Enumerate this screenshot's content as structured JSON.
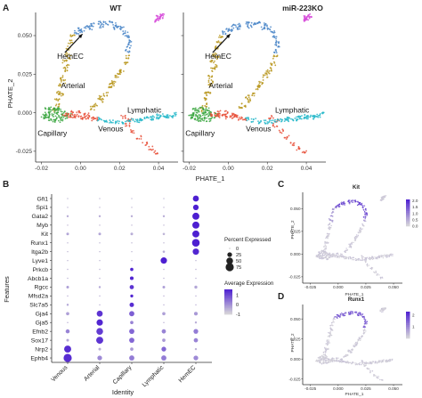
{
  "figure": {
    "panel_letters": [
      "A",
      "B",
      "C",
      "D"
    ]
  },
  "colors": {
    "HemEC": "#4a86c8",
    "Arterial": "#b8961e",
    "Capillary": "#3aa640",
    "Venous": "#e8503a",
    "Lymphatic": "#23b7c9",
    "other": "#d64ad9",
    "expr_low": "#d9d9d9",
    "expr_high": "#4d1fd1"
  },
  "chart_data": [
    {
      "panel": "A",
      "type": "scatter",
      "facets": [
        "WT",
        "miR-223KO"
      ],
      "xlabel": "PHATE_1",
      "ylabel": "PHATE_2",
      "x_ticks": [
        -0.02,
        0.0,
        0.02,
        0.04
      ],
      "x_tick_labels": [
        "-0.02",
        "0.00",
        "0.02",
        "0.04"
      ],
      "xlim": [
        -0.023,
        0.05
      ],
      "y_ticks": [
        -0.025,
        0.0,
        0.025,
        0.05
      ],
      "y_tick_labels": [
        "-0.025",
        "0.000",
        "0.025",
        "0.050"
      ],
      "ylim": [
        -0.032,
        0.065
      ],
      "cluster_labels": [
        {
          "text": "HemEC",
          "x": -0.012,
          "y": 0.035
        },
        {
          "text": "Arterial",
          "x": -0.01,
          "y": 0.016
        },
        {
          "text": "Lymphatic",
          "x": 0.024,
          "y": 0.0
        },
        {
          "text": "Venous",
          "x": 0.009,
          "y": -0.012
        },
        {
          "text": "Capillary",
          "x": -0.022,
          "y": -0.015
        }
      ],
      "arrow": {
        "from": [
          -0.008,
          0.039
        ],
        "to": [
          0.001,
          0.051
        ]
      },
      "clusters": [
        {
          "name": "HemEC",
          "points": [
            [
              -0.002,
              0.052
            ],
            [
              0.0,
              0.054
            ],
            [
              0.003,
              0.056
            ],
            [
              0.006,
              0.057
            ],
            [
              0.01,
              0.058
            ],
            [
              0.013,
              0.058
            ],
            [
              0.016,
              0.058
            ],
            [
              0.019,
              0.057
            ],
            [
              0.021,
              0.055
            ],
            [
              0.023,
              0.052
            ],
            [
              0.024,
              0.049
            ],
            [
              0.025,
              0.046
            ],
            [
              0.025,
              0.043
            ],
            [
              0.024,
              0.04
            ],
            [
              0.001,
              0.053
            ],
            [
              0.005,
              0.055
            ],
            [
              0.011,
              0.056
            ],
            [
              0.018,
              0.055
            ]
          ]
        },
        {
          "name": "Arterial",
          "points": [
            [
              -0.004,
              0.05
            ],
            [
              -0.005,
              0.046
            ],
            [
              -0.006,
              0.042
            ],
            [
              -0.007,
              0.038
            ],
            [
              -0.008,
              0.033
            ],
            [
              -0.008,
              0.028
            ],
            [
              -0.009,
              0.023
            ],
            [
              -0.01,
              0.018
            ],
            [
              -0.011,
              0.013
            ],
            [
              -0.012,
              0.009
            ],
            [
              -0.012,
              0.005
            ],
            [
              -0.013,
              0.002
            ],
            [
              -0.006,
              0.036
            ],
            [
              -0.009,
              0.02
            ],
            [
              -0.01,
              0.012
            ],
            [
              -0.007,
              0.03
            ],
            [
              0.024,
              0.036
            ],
            [
              0.023,
              0.032
            ],
            [
              0.021,
              0.028
            ],
            [
              0.019,
              0.024
            ],
            [
              0.017,
              0.02
            ],
            [
              0.015,
              0.016
            ],
            [
              0.013,
              0.012
            ],
            [
              0.011,
              0.008
            ],
            [
              0.008,
              0.005
            ],
            [
              0.006,
              0.003
            ],
            [
              0.01,
              0.01
            ],
            [
              0.016,
              0.018
            ],
            [
              0.02,
              0.026
            ]
          ]
        },
        {
          "name": "Capillary",
          "points": [
            [
              -0.014,
              0.003
            ],
            [
              -0.016,
              0.001
            ],
            [
              -0.017,
              -0.001
            ],
            [
              -0.018,
              -0.003
            ],
            [
              -0.016,
              -0.004
            ],
            [
              -0.014,
              -0.005
            ],
            [
              -0.012,
              -0.004
            ],
            [
              -0.01,
              -0.002
            ],
            [
              -0.009,
              0.0
            ],
            [
              -0.011,
              0.002
            ],
            [
              -0.013,
              -0.001
            ],
            [
              -0.015,
              -0.002
            ],
            [
              -0.008,
              -0.003
            ],
            [
              -0.017,
              0.002
            ],
            [
              -0.012,
              0.001
            ],
            [
              -0.01,
              -0.005
            ],
            [
              -0.006,
              -0.001
            ],
            [
              -0.019,
              -0.002
            ]
          ]
        },
        {
          "name": "Venous",
          "points": [
            [
              -0.008,
              -0.001
            ],
            [
              -0.006,
              -0.002
            ],
            [
              -0.004,
              -0.002
            ],
            [
              -0.002,
              -0.002
            ],
            [
              0.0,
              -0.003
            ],
            [
              0.002,
              -0.003
            ],
            [
              0.004,
              -0.003
            ],
            [
              0.006,
              -0.004
            ],
            [
              0.008,
              -0.004
            ],
            [
              -0.005,
              0.0
            ],
            [
              -0.001,
              0.0
            ],
            [
              0.003,
              -0.001
            ],
            [
              0.024,
              -0.008
            ],
            [
              0.027,
              -0.012
            ],
            [
              0.03,
              -0.016
            ],
            [
              0.033,
              -0.02
            ],
            [
              0.036,
              -0.023
            ],
            [
              0.039,
              -0.026
            ],
            [
              0.025,
              -0.005
            ],
            [
              0.022,
              -0.003
            ]
          ]
        },
        {
          "name": "Lymphatic",
          "points": [
            [
              0.01,
              -0.004
            ],
            [
              0.013,
              -0.005
            ],
            [
              0.016,
              -0.006
            ],
            [
              0.019,
              -0.006
            ],
            [
              0.022,
              -0.006
            ],
            [
              0.025,
              -0.005
            ],
            [
              0.028,
              -0.005
            ],
            [
              0.031,
              -0.004
            ],
            [
              0.034,
              -0.004
            ],
            [
              0.037,
              -0.003
            ],
            [
              0.04,
              -0.003
            ],
            [
              0.043,
              -0.002
            ],
            [
              0.046,
              -0.002
            ],
            [
              0.048,
              -0.001
            ],
            [
              0.044,
              -0.003
            ],
            [
              0.04,
              -0.002
            ],
            [
              0.036,
              -0.004
            ],
            [
              0.03,
              -0.005
            ]
          ]
        },
        {
          "name": "other",
          "points": [
            [
              0.039,
              0.06
            ],
            [
              0.04,
              0.061
            ],
            [
              0.041,
              0.062
            ],
            [
              0.042,
              0.063
            ],
            [
              0.04,
              0.062
            ]
          ]
        }
      ]
    },
    {
      "panel": "B",
      "type": "dotplot",
      "xlabel": "Identity",
      "ylabel": "Features",
      "categories": [
        "Venous",
        "Arterial",
        "Capillary",
        "Lymphatic",
        "HemEC"
      ],
      "features": [
        "Gfi1",
        "Spi1",
        "Gata2",
        "Myb",
        "Kit",
        "Runx1",
        "Itga2b",
        "Lyve1",
        "Prkcb",
        "Abcb1a",
        "Rgcc",
        "Mfsd2a",
        "Slc7a5",
        "Gja4",
        "Gja5",
        "Efnb2",
        "Sox17",
        "Nrp2",
        "Ephb4"
      ],
      "percent_expressed": [
        [
          2,
          2,
          2,
          2,
          40
        ],
        [
          2,
          2,
          2,
          2,
          35
        ],
        [
          5,
          5,
          5,
          5,
          55
        ],
        [
          2,
          2,
          2,
          2,
          55
        ],
        [
          8,
          8,
          8,
          6,
          55
        ],
        [
          2,
          2,
          2,
          2,
          65
        ],
        [
          2,
          2,
          2,
          6,
          45
        ],
        [
          2,
          2,
          2,
          45,
          2
        ],
        [
          2,
          2,
          12,
          2,
          2
        ],
        [
          2,
          2,
          15,
          2,
          2
        ],
        [
          8,
          5,
          20,
          8,
          10
        ],
        [
          2,
          2,
          10,
          2,
          2
        ],
        [
          5,
          2,
          22,
          2,
          2
        ],
        [
          12,
          40,
          30,
          12,
          15
        ],
        [
          2,
          45,
          12,
          2,
          5
        ],
        [
          18,
          50,
          30,
          20,
          25
        ],
        [
          8,
          55,
          30,
          12,
          20
        ],
        [
          55,
          8,
          12,
          25,
          5
        ],
        [
          75,
          25,
          30,
          30,
          25
        ]
      ],
      "average_expression": [
        [
          -0.6,
          -0.6,
          -0.6,
          -0.6,
          1.6
        ],
        [
          -0.6,
          -0.6,
          -0.6,
          -0.6,
          1.6
        ],
        [
          -0.4,
          -0.4,
          -0.4,
          -0.4,
          1.6
        ],
        [
          -0.6,
          -0.6,
          -0.6,
          -0.6,
          1.6
        ],
        [
          -0.3,
          -0.3,
          -0.4,
          -0.5,
          1.6
        ],
        [
          -0.6,
          -0.6,
          -0.6,
          -0.6,
          1.6
        ],
        [
          -0.6,
          -0.6,
          -0.6,
          -0.4,
          1.5
        ],
        [
          -0.6,
          -0.6,
          -0.6,
          1.6,
          -0.6
        ],
        [
          -0.5,
          -0.5,
          1.5,
          -0.5,
          -0.5
        ],
        [
          -0.5,
          -0.5,
          1.5,
          -0.5,
          -0.5
        ],
        [
          -0.2,
          -0.3,
          1.3,
          -0.2,
          -0.3
        ],
        [
          -0.5,
          -0.5,
          1.5,
          -0.5,
          -0.5
        ],
        [
          -0.3,
          -0.5,
          1.4,
          -0.5,
          -0.5
        ],
        [
          -0.2,
          1.3,
          0.7,
          -0.2,
          -0.1
        ],
        [
          -0.5,
          1.5,
          0.2,
          -0.5,
          -0.4
        ],
        [
          0.2,
          1.2,
          0.6,
          0.2,
          0.3
        ],
        [
          -0.3,
          1.3,
          0.6,
          -0.1,
          0.2
        ],
        [
          1.4,
          -0.4,
          -0.1,
          0.6,
          -0.5
        ],
        [
          1.4,
          0.1,
          0.3,
          0.3,
          0.1
        ]
      ],
      "legend": {
        "size_title": "Percent Expressed",
        "size_values": [
          0,
          25,
          50,
          75
        ],
        "size_labels": [
          "0",
          "25",
          "50",
          "75"
        ],
        "color_title": "Average Expression",
        "color_range": [
          -1,
          1.6
        ],
        "color_labels": [
          "1",
          "0",
          "-1"
        ],
        "color_label_values": [
          1,
          0,
          -1
        ]
      }
    },
    {
      "panel": "C",
      "type": "scatter",
      "title": "Kit",
      "xlabel": "PHATE_1",
      "ylabel": "PHATE_2",
      "x_ticks": [
        -0.025,
        0.0,
        0.025,
        0.05
      ],
      "x_tick_labels": [
        "-0.025",
        "0.000",
        "0.025",
        "0.050"
      ],
      "xlim": [
        -0.032,
        0.058
      ],
      "y_ticks": [
        -0.025,
        0.0,
        0.025,
        0.05
      ],
      "y_tick_labels": [
        "-0.025",
        "0.000",
        "0.025",
        "0.050"
      ],
      "ylim": [
        -0.032,
        0.068
      ],
      "colorbar_labels": [
        "2.0",
        "1.5",
        "1.0",
        "0.5",
        "0.0"
      ],
      "colorbar_values": [
        2.0,
        1.5,
        1.0,
        0.5,
        0.0
      ],
      "color_range": [
        0,
        2.1
      ]
    },
    {
      "panel": "D",
      "type": "scatter",
      "title": "Runx1",
      "xlabel": "PHATE_1",
      "ylabel": "PHATE_2",
      "x_ticks": [
        -0.025,
        0.0,
        0.025,
        0.05
      ],
      "x_tick_labels": [
        "-0.025",
        "0.000",
        "0.025",
        "0.050"
      ],
      "xlim": [
        -0.032,
        0.058
      ],
      "y_ticks": [
        -0.025,
        0.0,
        0.025,
        0.05
      ],
      "y_tick_labels": [
        "-0.025",
        "0.000",
        "0.025",
        "0.050"
      ],
      "ylim": [
        -0.032,
        0.068
      ],
      "colorbar_labels": [
        "2",
        "1"
      ],
      "colorbar_values": [
        2,
        1
      ],
      "color_range": [
        0,
        2.3
      ]
    }
  ]
}
